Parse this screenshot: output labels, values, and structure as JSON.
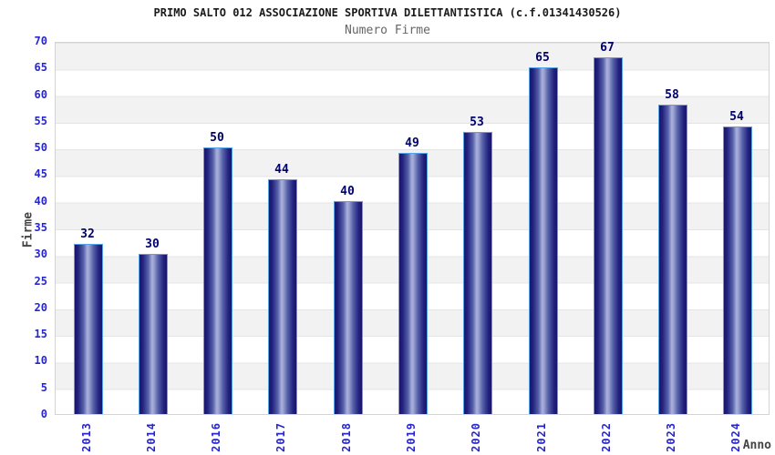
{
  "title": "PRIMO SALTO 012 ASSOCIAZIONE SPORTIVA DILETTANTISTICA (c.f.01341430526)",
  "subtitle": "Numero Firme",
  "chart_data": {
    "type": "bar",
    "title": "PRIMO SALTO 012 ASSOCIAZIONE SPORTIVA DILETTANTISTICA (c.f.01341430526)",
    "subtitle": "Numero Firme",
    "xlabel": "Anno",
    "ylabel": "Firme",
    "categories": [
      "2013",
      "2014",
      "2016",
      "2017",
      "2018",
      "2019",
      "2020",
      "2021",
      "2022",
      "2023",
      "2024"
    ],
    "values": [
      32,
      30,
      50,
      44,
      40,
      49,
      53,
      65,
      67,
      58,
      54
    ],
    "ylim": [
      0,
      70
    ],
    "ytick_step": 5,
    "grid": "horizontal-bands",
    "legend": "none",
    "colors": {
      "bar_dark": "#15156b",
      "bar_light": "#abb1dc",
      "bar_border": "#55a2e8",
      "tick_label": "#2626cf",
      "value_label": "#00006b",
      "band_gray": "#f2f2f2",
      "band_white": "#ffffff",
      "title_text": "#1a1a1a",
      "subtitle_text": "#666666",
      "axis_label_text": "#444444",
      "plot_border": "#d4d4d4"
    }
  }
}
